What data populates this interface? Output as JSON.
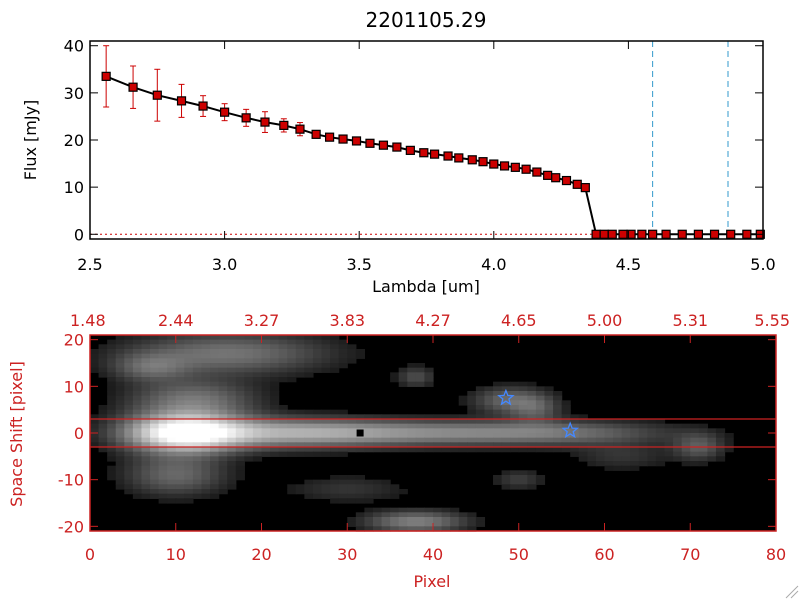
{
  "chart_data": [
    {
      "type": "line",
      "title": "2201105.29",
      "xlabel": "Lambda [um]",
      "ylabel": "Flux [mJy]",
      "xlim": [
        2.5,
        5.0
      ],
      "ylim": [
        -1,
        41
      ],
      "xticks": [
        "2.5",
        "3.0",
        "3.5",
        "4.0",
        "4.5",
        "5.0"
      ],
      "xtick_values": [
        2.5,
        3.0,
        3.5,
        4.0,
        4.5,
        5.0
      ],
      "yticks": [
        "0",
        "10",
        "20",
        "30",
        "40"
      ],
      "ytick_values": [
        0,
        10,
        20,
        30,
        40
      ],
      "grid": false,
      "series": [
        {
          "color": "#000000",
          "marker_color": "#cc0000",
          "errorbar_color": "#cc0000",
          "x": [
            2.56,
            2.66,
            2.75,
            2.84,
            2.92,
            3.0,
            3.08,
            3.15,
            3.22,
            3.28,
            3.34,
            3.39,
            3.44,
            3.49,
            3.54,
            3.59,
            3.64,
            3.69,
            3.74,
            3.78,
            3.83,
            3.87,
            3.92,
            3.96,
            4.0,
            4.04,
            4.08,
            4.12,
            4.16,
            4.2,
            4.23,
            4.27,
            4.31,
            4.34,
            4.38,
            4.41,
            4.44,
            4.48,
            4.51,
            4.55,
            4.59,
            4.64,
            4.7,
            4.76,
            4.82,
            4.88,
            4.94,
            4.99
          ],
          "y": [
            33.5,
            31.2,
            29.5,
            28.3,
            27.2,
            25.9,
            24.7,
            23.8,
            23.1,
            22.3,
            21.2,
            20.6,
            20.2,
            19.8,
            19.3,
            18.9,
            18.5,
            17.8,
            17.3,
            17.0,
            16.6,
            16.2,
            15.8,
            15.4,
            14.9,
            14.5,
            14.2,
            13.8,
            13.2,
            12.5,
            12.0,
            11.4,
            10.6,
            9.9,
            0,
            0,
            0,
            0,
            0,
            0,
            0,
            0,
            0,
            0,
            0,
            0,
            0,
            0
          ],
          "yerr": [
            6.5,
            4.5,
            5.5,
            3.5,
            2.2,
            1.8,
            1.8,
            2.2,
            1.4,
            1.4,
            0.8,
            0.5,
            0.4,
            0.3,
            0.3,
            0.3,
            0.3,
            0.3,
            0.3,
            0.3,
            0.3,
            0.3,
            0.3,
            0.3,
            0.3,
            0.3,
            0.3,
            0.3,
            0.3,
            0.3,
            0.3,
            0.3,
            0.3,
            0.3,
            0,
            0,
            0,
            0,
            0,
            0,
            0,
            0,
            0,
            0,
            0,
            0,
            0,
            0
          ]
        }
      ],
      "vertical_lines": [
        {
          "x": 4.59,
          "color": "#3399cc",
          "style": "dashed"
        },
        {
          "x": 4.87,
          "color": "#3399cc",
          "style": "dashed"
        }
      ],
      "horizontal_lines": [
        {
          "y": 0,
          "color": "#cc0000",
          "style": "dotted"
        }
      ]
    },
    {
      "type": "heatmap",
      "colormap": "grayscale",
      "xlabel": "Pixel",
      "ylabel": "Space Shift [pixel]",
      "axis_color": "#cc2222",
      "xlim": [
        0,
        80
      ],
      "ylim": [
        -21,
        21
      ],
      "xticks": [
        "0",
        "10",
        "20",
        "30",
        "40",
        "50",
        "60",
        "70",
        "80"
      ],
      "xtick_values": [
        0,
        10,
        20,
        30,
        40,
        50,
        60,
        70,
        80
      ],
      "yticks": [
        "-20",
        "-10",
        "0",
        "10",
        "20"
      ],
      "ytick_values": [
        -20,
        -10,
        0,
        10,
        20
      ],
      "top_axis_ticks": [
        "1.48",
        "2.44",
        "3.27",
        "3.83",
        "4.27",
        "4.65",
        "5.00",
        "5.31",
        "5.55"
      ],
      "top_axis_tick_values": [
        0,
        10,
        20,
        30,
        40,
        50,
        60,
        70,
        80
      ],
      "blobs": [
        {
          "x": 11,
          "y": 0,
          "sx": 4.5,
          "sy": 2.8,
          "amp": 1.0
        },
        {
          "x": 22,
          "y": 0,
          "sx": 9,
          "sy": 2.2,
          "amp": 0.45
        },
        {
          "x": 38,
          "y": 0,
          "sx": 12,
          "sy": 1.8,
          "amp": 0.35
        },
        {
          "x": 55,
          "y": 0,
          "sx": 9,
          "sy": 1.8,
          "amp": 0.25
        },
        {
          "x": 12,
          "y": 7,
          "sx": 5,
          "sy": 3,
          "amp": 0.35
        },
        {
          "x": 16,
          "y": 17,
          "sx": 8,
          "sy": 3,
          "amp": 0.35
        },
        {
          "x": 7,
          "y": 14,
          "sx": 3,
          "sy": 2,
          "amp": 0.25
        },
        {
          "x": 10,
          "y": -9,
          "sx": 4,
          "sy": 3,
          "amp": 0.3
        },
        {
          "x": 38,
          "y": -19,
          "sx": 4,
          "sy": 1.6,
          "amp": 0.4
        },
        {
          "x": 49,
          "y": 7,
          "sx": 3,
          "sy": 2,
          "amp": 0.3
        },
        {
          "x": 52,
          "y": 5,
          "sx": 2,
          "sy": 2,
          "amp": 0.2
        },
        {
          "x": 38,
          "y": 12,
          "sx": 1.5,
          "sy": 1.5,
          "amp": 0.2
        },
        {
          "x": 71,
          "y": -3,
          "sx": 2,
          "sy": 2,
          "amp": 0.25
        },
        {
          "x": 50,
          "y": -10,
          "sx": 2,
          "sy": 1.5,
          "amp": 0.15
        },
        {
          "x": 30,
          "y": -12,
          "sx": 5,
          "sy": 2,
          "amp": 0.12
        },
        {
          "x": 62,
          "y": -5,
          "sx": 4,
          "sy": 2,
          "amp": 0.12
        }
      ],
      "horizontal_lines": [
        {
          "y": 3,
          "color": "#cc2222"
        },
        {
          "y": -3,
          "color": "#cc2222"
        }
      ],
      "markers": [
        {
          "shape": "square",
          "x": 31.5,
          "y": 0,
          "color": "#000000"
        },
        {
          "shape": "star",
          "x": 48.5,
          "y": 7.5,
          "color": "#4488ff"
        },
        {
          "shape": "star",
          "x": 56,
          "y": 0.5,
          "color": "#4488ff"
        }
      ]
    }
  ]
}
